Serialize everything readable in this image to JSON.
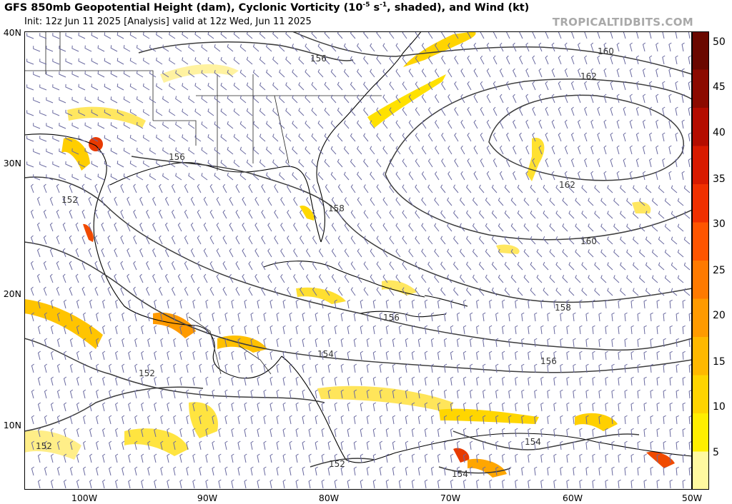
{
  "header": {
    "title_main": "GFS 850mb Geopotential Height (dam), Cyclonic Vorticity (10",
    "title_sup": "-5",
    "title_mid": " s",
    "title_sup2": "-1",
    "title_end": ", shaded), and Wind (kt)",
    "subtitle": "Init: 12z Jun 11 2025   [Analysis]   valid at 12z Wed, Jun 11 2025",
    "brand": "TROPICALTIDBITS.COM"
  },
  "axes": {
    "lat_labels": [
      "40N",
      "30N",
      "20N",
      "10N"
    ],
    "lon_labels": [
      "100W",
      "90W",
      "80W",
      "70W",
      "60W",
      "50W"
    ]
  },
  "contours": {
    "labels": [
      "160",
      "162",
      "156",
      "156",
      "158",
      "152",
      "162",
      "160",
      "156",
      "158",
      "154",
      "152",
      "156",
      "152",
      "154",
      "152",
      "154"
    ]
  },
  "colorbar": {
    "labels": [
      "50",
      "45",
      "40",
      "35",
      "30",
      "25",
      "20",
      "15",
      "10",
      "5"
    ],
    "colors": [
      "#fff9a0",
      "#ffee00",
      "#ffd400",
      "#ffb800",
      "#ff9a00",
      "#ff7a00",
      "#ff5500",
      "#f03000",
      "#d81a00",
      "#b40c00",
      "#8c0a00",
      "#6a0800"
    ]
  },
  "colors": {
    "contour": "#3c3c3c",
    "barb": "#6a6aa0",
    "coast": "#000000",
    "border": "#9a9a9a"
  }
}
